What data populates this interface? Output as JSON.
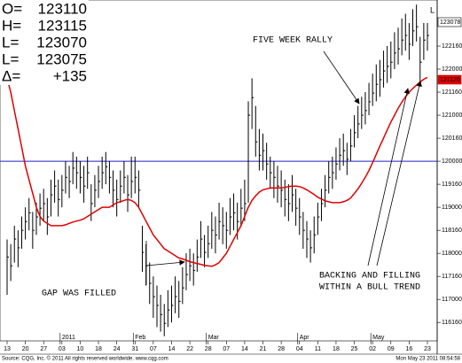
{
  "chart_data": {
    "type": "hlc",
    "quote_box": [
      {
        "label": "O=",
        "value": "123110"
      },
      {
        "label": "H=",
        "value": "123115"
      },
      {
        "label": "L=",
        "value": "123070"
      },
      {
        "label": "L=",
        "value": "123075"
      },
      {
        "label": "Δ=",
        "value": "+135"
      }
    ],
    "annotations": [
      "FIVE WEEK RALLY",
      "GAP WAS FILLED",
      "BACKING AND FILLING",
      "WITHIN A BULL TREND"
    ],
    "corner_mark": "L",
    "price_tags": [
      {
        "text": "123078",
        "color": "#ffffff"
      },
      {
        "text": "121126",
        "color": "#e00000"
      }
    ],
    "source": "Source: CQG, Inc. © 2011 All rights reserved worldwide. www.cqg.com",
    "timestamp": "Mon May 23 2011 08:54:58",
    "categories": [
      "13",
      null,
      null,
      null,
      null,
      "20",
      null,
      null,
      null,
      null,
      "27",
      null,
      null,
      null,
      null,
      "03",
      null,
      null,
      null,
      null,
      "10",
      null,
      null,
      null,
      null,
      "18",
      null,
      null,
      null,
      null,
      "24",
      null,
      null,
      null,
      null,
      "31",
      null,
      null,
      null,
      null,
      "07",
      null,
      null,
      null,
      null,
      "14",
      null,
      null,
      null,
      null,
      "22",
      null,
      null,
      null,
      null,
      "28",
      null,
      null,
      null,
      null,
      "07",
      null,
      null,
      null,
      null,
      "14",
      null,
      null,
      null,
      null,
      "21",
      null,
      null,
      null,
      null,
      "28",
      null,
      null,
      null,
      null,
      "04",
      null,
      null,
      null,
      null,
      "11",
      null,
      null,
      null,
      null,
      "18",
      null,
      null,
      null,
      null,
      "25",
      null,
      null,
      null,
      null,
      "02",
      null,
      null,
      null,
      null,
      "09",
      null,
      null,
      null,
      null,
      "16",
      null,
      null,
      null,
      null,
      "23"
    ],
    "month_labels": [
      {
        "label": "2011",
        "at": 15
      },
      {
        "label": "Feb",
        "at": 35
      },
      {
        "label": "Mar",
        "at": 55
      },
      {
        "label": "Apr",
        "at": 80
      },
      {
        "label": "May",
        "at": 100
      }
    ],
    "bar_color": "#000000",
    "high": [
      118.3,
      118.2,
      118.6,
      118.5,
      118.8,
      119.0,
      119.2,
      118.9,
      119.1,
      119.3,
      119.4,
      119.2,
      119.6,
      119.8,
      119.6,
      119.7,
      120.0,
      119.9,
      120.2,
      120.1,
      120.0,
      119.9,
      120.1,
      119.5,
      119.7,
      119.9,
      120.1,
      120.2,
      120.0,
      119.8,
      119.6,
      119.8,
      120.0,
      119.7,
      120.1,
      120.1,
      119.8,
      118.6,
      118.2,
      117.8,
      117.5,
      117.3,
      117.1,
      116.9,
      117.2,
      117.3,
      117.5,
      117.4,
      117.7,
      118.0,
      118.1,
      118.0,
      118.3,
      118.7,
      118.4,
      118.6,
      118.9,
      118.8,
      119.1,
      119.0,
      118.9,
      119.2,
      119.3,
      119.1,
      119.4,
      119.6,
      121.3,
      121.8,
      121.2,
      120.7,
      120.6,
      120.4,
      120.1,
      120.0,
      119.9,
      119.8,
      119.6,
      119.5,
      119.7,
      119.4,
      119.2,
      118.9,
      118.7,
      118.5,
      118.8,
      119.1,
      119.4,
      119.7,
      120.0,
      120.1,
      120.3,
      120.5,
      120.6,
      120.4,
      120.7,
      121.0,
      121.2,
      121.4,
      121.5,
      121.7,
      121.9,
      122.1,
      122.2,
      122.4,
      122.5,
      122.6,
      122.8,
      122.9,
      123.1,
      123.2,
      123.0,
      123.3,
      123.4,
      122.7,
      123.0,
      123.0
    ],
    "low": [
      117.1,
      117.4,
      117.8,
      117.7,
      118.1,
      118.3,
      118.5,
      118.1,
      118.4,
      118.6,
      118.7,
      118.4,
      118.8,
      119.1,
      118.8,
      119.0,
      119.3,
      119.2,
      119.5,
      119.4,
      119.3,
      119.1,
      119.4,
      118.7,
      119.0,
      119.2,
      119.4,
      119.5,
      119.3,
      119.0,
      118.8,
      119.1,
      119.3,
      118.9,
      119.2,
      119.3,
      119.0,
      117.6,
      117.3,
      116.9,
      116.6,
      116.4,
      116.3,
      116.2,
      116.4,
      116.5,
      116.7,
      116.6,
      116.9,
      117.2,
      117.4,
      117.3,
      117.6,
      117.9,
      117.7,
      117.9,
      118.1,
      118.0,
      118.3,
      118.2,
      118.1,
      118.4,
      118.5,
      118.3,
      118.6,
      118.7,
      119.1,
      120.7,
      120.1,
      119.8,
      119.8,
      119.6,
      119.4,
      119.2,
      119.1,
      119.0,
      118.8,
      118.7,
      118.9,
      118.6,
      118.4,
      118.1,
      117.9,
      117.8,
      118.0,
      118.4,
      118.7,
      119.0,
      119.3,
      119.4,
      119.6,
      119.8,
      119.9,
      119.7,
      120.0,
      120.3,
      120.5,
      120.7,
      120.8,
      121.0,
      121.2,
      121.3,
      121.4,
      121.6,
      121.7,
      121.8,
      122.0,
      122.1,
      122.3,
      122.4,
      122.2,
      122.5,
      122.6,
      121.7,
      122.2,
      122.4
    ],
    "close": [
      117.92,
      117.73,
      118.31,
      118.12,
      118.5,
      118.69,
      118.88,
      118.5,
      118.79,
      118.98,
      119.08,
      118.79,
      119.27,
      119.46,
      119.17,
      119.37,
      119.65,
      119.56,
      119.85,
      119.75,
      119.65,
      119.46,
      119.75,
      119.08,
      119.37,
      119.56,
      119.75,
      119.88,
      119.65,
      119.37,
      119.17,
      119.46,
      119.65,
      119.27,
      119.56,
      119.65,
      119.37,
      118.02,
      117.73,
      117.35,
      117.06,
      116.87,
      116.67,
      116.48,
      116.77,
      116.87,
      117.06,
      116.96,
      117.25,
      117.54,
      117.73,
      117.63,
      117.92,
      118.31,
      118.02,
      118.21,
      118.5,
      118.4,
      118.69,
      118.6,
      118.5,
      118.79,
      118.88,
      118.69,
      118.98,
      119.08,
      121.0,
      121.38,
      120.42,
      120.13,
      120.23,
      119.94,
      119.75,
      119.65,
      119.46,
      119.37,
      119.17,
      119.08,
      119.27,
      118.98,
      118.79,
      118.5,
      118.31,
      118.12,
      118.4,
      118.79,
      119.08,
      119.37,
      119.65,
      119.75,
      119.94,
      120.13,
      120.23,
      120.04,
      120.33,
      120.62,
      120.81,
      121.0,
      121.1,
      121.29,
      121.48,
      121.67,
      121.77,
      121.96,
      122.06,
      122.15,
      122.35,
      122.44,
      122.63,
      122.73,
      122.54,
      122.83,
      122.92,
      122.15,
      122.63,
      122.73
    ],
    "average": {
      "color": "#e00000",
      "values": [
        121.8,
        121.5,
        121.1,
        120.7,
        120.3,
        119.9,
        119.6,
        119.3,
        119.0,
        118.8,
        118.7,
        118.65,
        118.6,
        118.6,
        118.6,
        118.6,
        118.62,
        118.65,
        118.68,
        118.7,
        118.72,
        118.75,
        118.8,
        118.85,
        118.9,
        118.95,
        119.0,
        119.0,
        119.0,
        119.05,
        119.1,
        119.12,
        119.15,
        119.17,
        119.15,
        119.1,
        119.0,
        118.85,
        118.7,
        118.55,
        118.4,
        118.3,
        118.2,
        118.1,
        118.05,
        118.0,
        117.95,
        117.9,
        117.88,
        117.85,
        117.82,
        117.8,
        117.78,
        117.76,
        117.74,
        117.73,
        117.72,
        117.75,
        117.8,
        117.9,
        118.0,
        118.15,
        118.3,
        118.45,
        118.6,
        118.8,
        119.0,
        119.15,
        119.25,
        119.33,
        119.38,
        119.4,
        119.42,
        119.42,
        119.42,
        119.42,
        119.43,
        119.45,
        119.46,
        119.46,
        119.45,
        119.42,
        119.38,
        119.33,
        119.28,
        119.22,
        119.18,
        119.14,
        119.12,
        119.1,
        119.1,
        119.1,
        119.12,
        119.15,
        119.2,
        119.3,
        119.4,
        119.52,
        119.65,
        119.8,
        119.97,
        120.15,
        120.33,
        120.5,
        120.68,
        120.85,
        121.0,
        121.15,
        121.28,
        121.4,
        121.5,
        121.58,
        121.65,
        121.72,
        121.78,
        121.82
      ]
    },
    "hline": {
      "value": 120,
      "color": "#2020c0"
    },
    "ylim": [
      116.1,
      123.5
    ],
    "yticks": [
      {
        "value": 122.5,
        "label": "122160"
      },
      {
        "value": 122,
        "label": "122000"
      },
      {
        "value": 121.5,
        "label": "121160"
      },
      {
        "value": 121,
        "label": "121000"
      },
      {
        "value": 120.5,
        "label": "120160"
      },
      {
        "value": 120,
        "label": "120000"
      },
      {
        "value": 119.5,
        "label": "119160"
      },
      {
        "value": 119,
        "label": "119000"
      },
      {
        "value": 118.5,
        "label": "118160"
      },
      {
        "value": 118,
        "label": "118000"
      },
      {
        "value": 117.5,
        "label": "117160"
      },
      {
        "value": 117,
        "label": "117000"
      },
      {
        "value": 116.5,
        "label": "116160"
      }
    ]
  }
}
